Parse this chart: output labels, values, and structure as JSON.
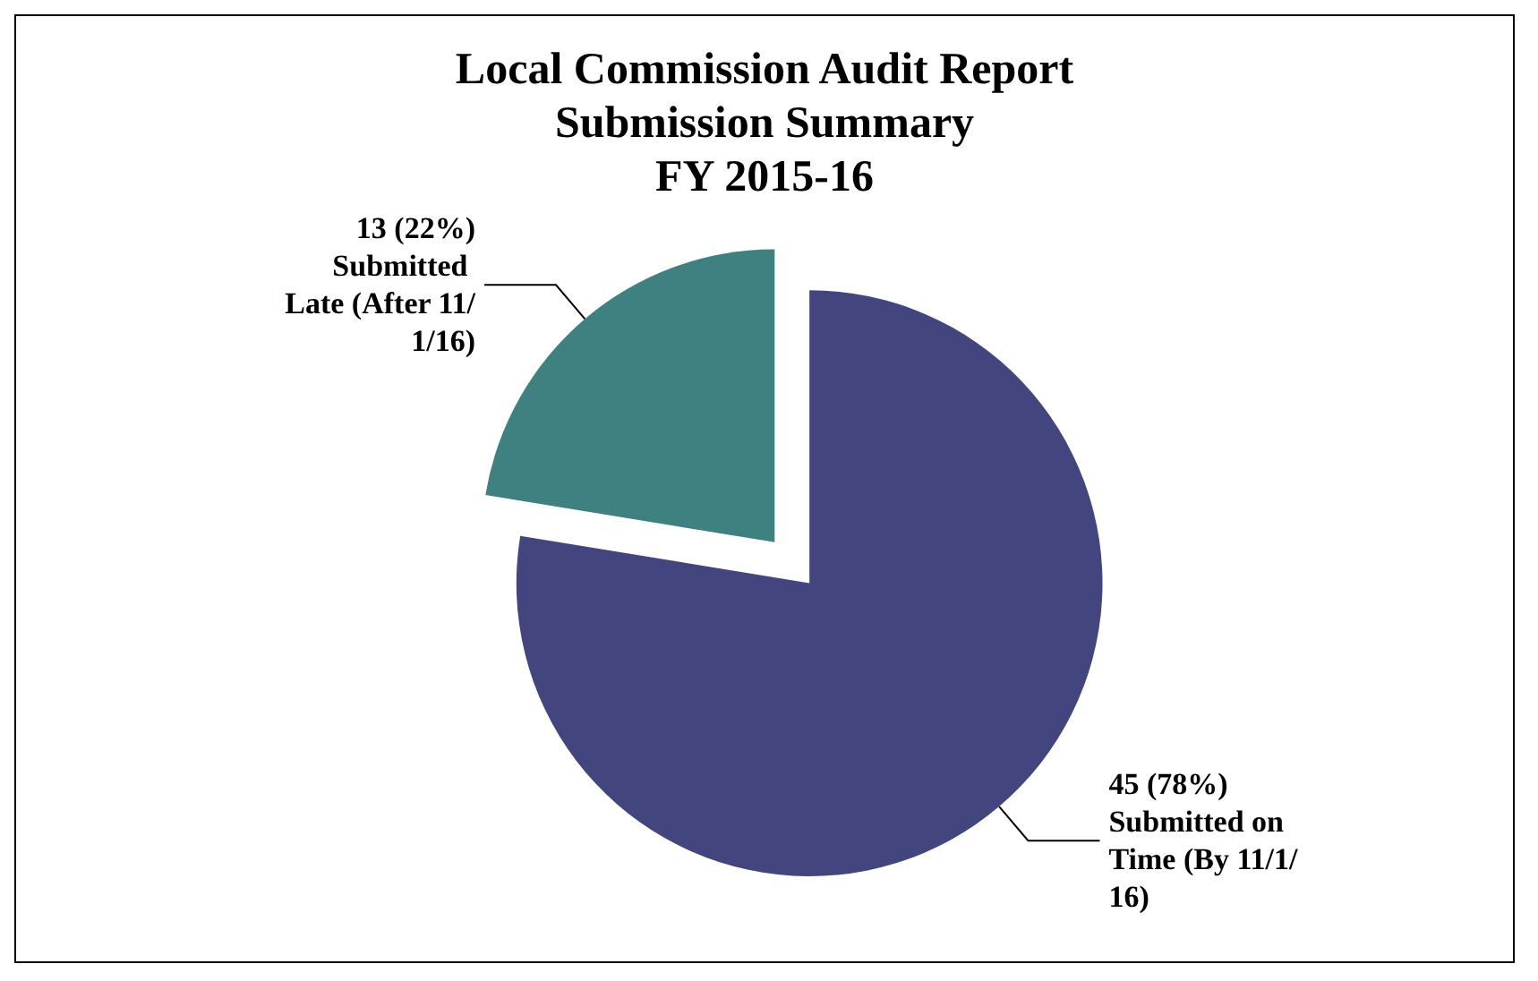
{
  "chart_data": {
    "type": "pie",
    "title": "Local Commission Audit Report\nSubmission Summary\nFY 2015-16",
    "categories": [
      "Submitted on Time (By 11/1/16)",
      "Submitted Late (After 11/1/16)"
    ],
    "values": [
      45,
      13
    ],
    "value_labels": [
      "45 (78%)",
      "13 (22%)"
    ],
    "colors": [
      "#43457f",
      "#3f8080"
    ],
    "legend": false
  }
}
